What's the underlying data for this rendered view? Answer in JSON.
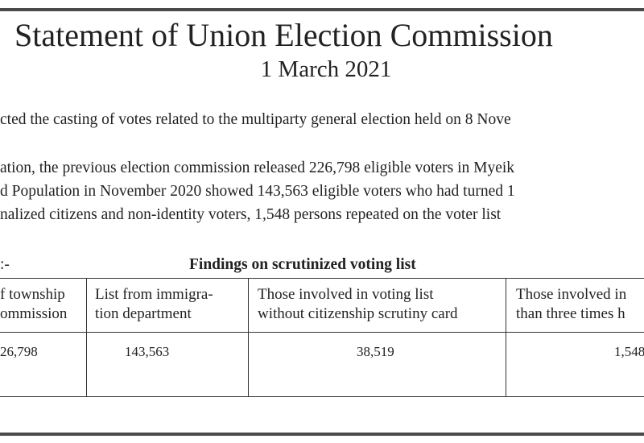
{
  "header": {
    "title": "Statement of Union Election Commission",
    "date": "1 March 2021"
  },
  "paragraphs": [
    "cted the casting of votes related to the multiparty general election held on 8 Nove",
    "ation, the previous election commission released 226,798 eligible voters in Myeik",
    "d Population in November 2020 showed 143,563 eligible voters who had turned 1",
    "nalized citizens and non-identity voters, 1,548 persons repeated on the voter list"
  ],
  "table": {
    "lead": ":-",
    "caption": "Findings on scrutinized voting list",
    "headers": [
      [
        "f township",
        "ommission"
      ],
      [
        "List from immigra-",
        "tion department"
      ],
      [
        "Those involved in voting list",
        "without citizenship scrutiny card"
      ],
      [
        "Those involved in",
        "than three times h"
      ]
    ],
    "rows": [
      [
        "26,798",
        "143,563",
        "38,519",
        "1,548"
      ]
    ]
  }
}
